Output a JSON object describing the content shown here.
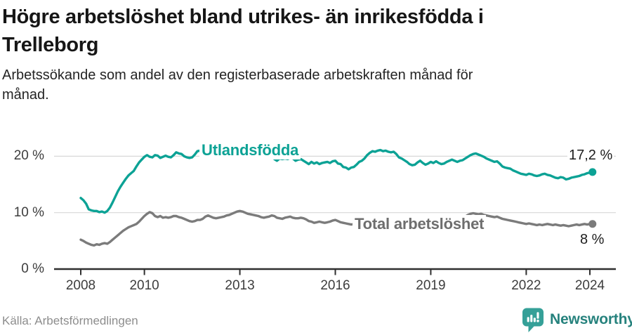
{
  "header": {
    "title": "Högre arbetslöshet bland utrikes- än inrikesfödda i\nTrelleborg",
    "subtitle": "Arbetssökande som andel av den registerbaserade arbetskraften månad för\nmånad."
  },
  "footer": {
    "source": "Källa: Arbetsförmedlingen",
    "brand": "Newsworthy",
    "brand_text_color": "#26827d",
    "brand_icon": "bar-chart-speech-bubble-icon",
    "brand_icon_color": "#35a098"
  },
  "chart_data": {
    "type": "line",
    "unit": "%",
    "grid": "horizontal",
    "legend_position": "inline-labels",
    "xlim": [
      2007.16,
      2024.82
    ],
    "ylim": [
      0,
      24
    ],
    "x_ticks": [
      {
        "value": 2008,
        "label": "2008"
      },
      {
        "value": 2010,
        "label": "2010"
      },
      {
        "value": 2013,
        "label": "2013"
      },
      {
        "value": 2016,
        "label": "2016"
      },
      {
        "value": 2019,
        "label": "2019"
      },
      {
        "value": 2022,
        "label": "2022"
      },
      {
        "value": 2024,
        "label": "2024"
      }
    ],
    "y_ticks": [
      {
        "value": 0,
        "label": "0 %"
      },
      {
        "value": 10,
        "label": "10 %"
      },
      {
        "value": 20,
        "label": "20 %"
      }
    ],
    "series": [
      {
        "name": "Utlandsfödda",
        "color": "#0ca295",
        "label_color": "#0ca295",
        "start_year": 2008,
        "step_months": 1,
        "end_label": "17,2 %",
        "end_value": 17.2,
        "values": [
          12.6,
          12.2,
          11.6,
          10.6,
          10.4,
          10.3,
          10.3,
          10.1,
          10.2,
          10.0,
          10.3,
          10.9,
          11.8,
          12.8,
          13.8,
          14.6,
          15.3,
          16.0,
          16.6,
          17.0,
          17.4,
          18.2,
          18.9,
          19.4,
          19.9,
          20.2,
          19.9,
          19.8,
          20.2,
          20.1,
          19.7,
          19.9,
          20.1,
          19.9,
          19.8,
          20.2,
          20.7,
          20.5,
          20.4,
          20.0,
          19.8,
          19.7,
          19.8,
          20.3,
          20.9,
          21.0,
          20.8,
          20.9,
          21.0,
          20.7,
          20.4,
          20.1,
          20.0,
          20.3,
          20.6,
          20.4,
          20.5,
          20.7,
          21.0,
          21.1,
          21.0,
          21.2,
          21.1,
          21.0,
          21.1,
          21.0,
          21.1,
          20.9,
          20.4,
          20.3,
          20.3,
          20.2,
          20.2,
          19.5,
          19.2,
          19.6,
          19.5,
          19.6,
          19.5,
          19.7,
          19.6,
          19.2,
          19.4,
          19.5,
          19.2,
          18.9,
          18.6,
          19.0,
          18.7,
          18.9,
          18.6,
          18.8,
          18.9,
          19.0,
          18.8,
          19.1,
          19.2,
          18.7,
          18.6,
          18.1,
          18.0,
          17.7,
          18.0,
          18.1,
          18.5,
          19.0,
          19.2,
          19.6,
          20.2,
          20.6,
          20.9,
          20.8,
          21.0,
          21.1,
          20.9,
          21.0,
          20.8,
          20.7,
          20.8,
          20.4,
          19.8,
          19.6,
          19.3,
          19.0,
          18.6,
          18.4,
          18.5,
          18.9,
          19.2,
          18.8,
          18.5,
          18.7,
          19.0,
          18.8,
          19.1,
          18.8,
          18.6,
          18.7,
          19.0,
          19.2,
          19.4,
          19.2,
          19.0,
          19.2,
          19.3,
          19.6,
          19.9,
          20.2,
          20.4,
          20.5,
          20.3,
          20.1,
          19.9,
          19.6,
          19.4,
          19.2,
          19.0,
          19.1,
          18.7,
          18.2,
          18.0,
          17.9,
          17.8,
          17.5,
          17.3,
          17.1,
          16.9,
          16.8,
          16.7,
          16.9,
          16.8,
          16.6,
          16.5,
          16.6,
          16.8,
          16.9,
          16.7,
          16.6,
          16.4,
          16.2,
          16.1,
          16.3,
          16.2,
          15.9,
          16.0,
          16.2,
          16.3,
          16.4,
          16.5,
          16.7,
          16.8,
          17.0,
          17.1,
          17.2
        ]
      },
      {
        "name": "Total arbetslöshet",
        "color": "#7b7b7b",
        "label_color": "#6e6e6e",
        "start_year": 2008,
        "step_months": 1,
        "end_label": "8 %",
        "end_value": 8.0,
        "values": [
          5.2,
          5.0,
          4.7,
          4.5,
          4.3,
          4.2,
          4.4,
          4.3,
          4.5,
          4.6,
          4.5,
          4.8,
          5.2,
          5.6,
          6.0,
          6.4,
          6.8,
          7.1,
          7.4,
          7.6,
          7.8,
          8.0,
          8.4,
          8.9,
          9.4,
          9.8,
          10.1,
          9.9,
          9.4,
          9.2,
          9.4,
          9.1,
          9.2,
          9.1,
          9.2,
          9.4,
          9.4,
          9.2,
          9.1,
          8.9,
          8.7,
          8.5,
          8.4,
          8.5,
          8.7,
          8.7,
          8.9,
          9.3,
          9.5,
          9.3,
          9.1,
          9.0,
          9.1,
          9.2,
          9.3,
          9.5,
          9.6,
          9.8,
          10.0,
          10.2,
          10.3,
          10.2,
          10.0,
          9.8,
          9.7,
          9.6,
          9.5,
          9.4,
          9.2,
          9.1,
          9.2,
          9.3,
          9.5,
          9.4,
          9.1,
          9.0,
          8.9,
          9.1,
          9.2,
          9.3,
          9.1,
          9.0,
          9.0,
          9.1,
          9.0,
          8.8,
          8.5,
          8.4,
          8.2,
          8.3,
          8.4,
          8.3,
          8.2,
          8.3,
          8.4,
          8.6,
          8.7,
          8.5,
          8.3,
          8.2,
          8.1,
          8.0,
          7.9,
          8.0,
          8.1,
          8.0,
          7.9,
          8.0,
          8.1,
          8.0,
          7.9,
          7.8,
          7.9,
          8.0,
          8.0,
          8.1,
          8.2,
          8.1,
          8.2,
          8.3,
          8.4,
          8.3,
          8.4,
          8.3,
          8.2,
          8.3,
          8.4,
          8.5,
          8.4,
          8.3,
          8.4,
          8.5,
          8.5,
          8.4,
          8.5,
          8.4,
          8.5,
          8.6,
          8.7,
          8.6,
          8.7,
          8.6,
          8.7,
          8.9,
          9.0,
          9.3,
          9.6,
          9.8,
          9.9,
          9.8,
          9.7,
          9.8,
          9.6,
          9.5,
          9.4,
          9.3,
          9.2,
          9.3,
          9.1,
          8.9,
          8.8,
          8.7,
          8.6,
          8.5,
          8.4,
          8.3,
          8.2,
          8.1,
          8.0,
          8.1,
          8.0,
          7.9,
          7.8,
          7.9,
          7.8,
          7.9,
          8.0,
          7.9,
          7.8,
          7.9,
          7.8,
          7.7,
          7.8,
          7.7,
          7.6,
          7.7,
          7.8,
          7.9,
          7.8,
          7.9,
          8.0,
          7.9,
          8.0,
          8.0
        ]
      }
    ]
  }
}
